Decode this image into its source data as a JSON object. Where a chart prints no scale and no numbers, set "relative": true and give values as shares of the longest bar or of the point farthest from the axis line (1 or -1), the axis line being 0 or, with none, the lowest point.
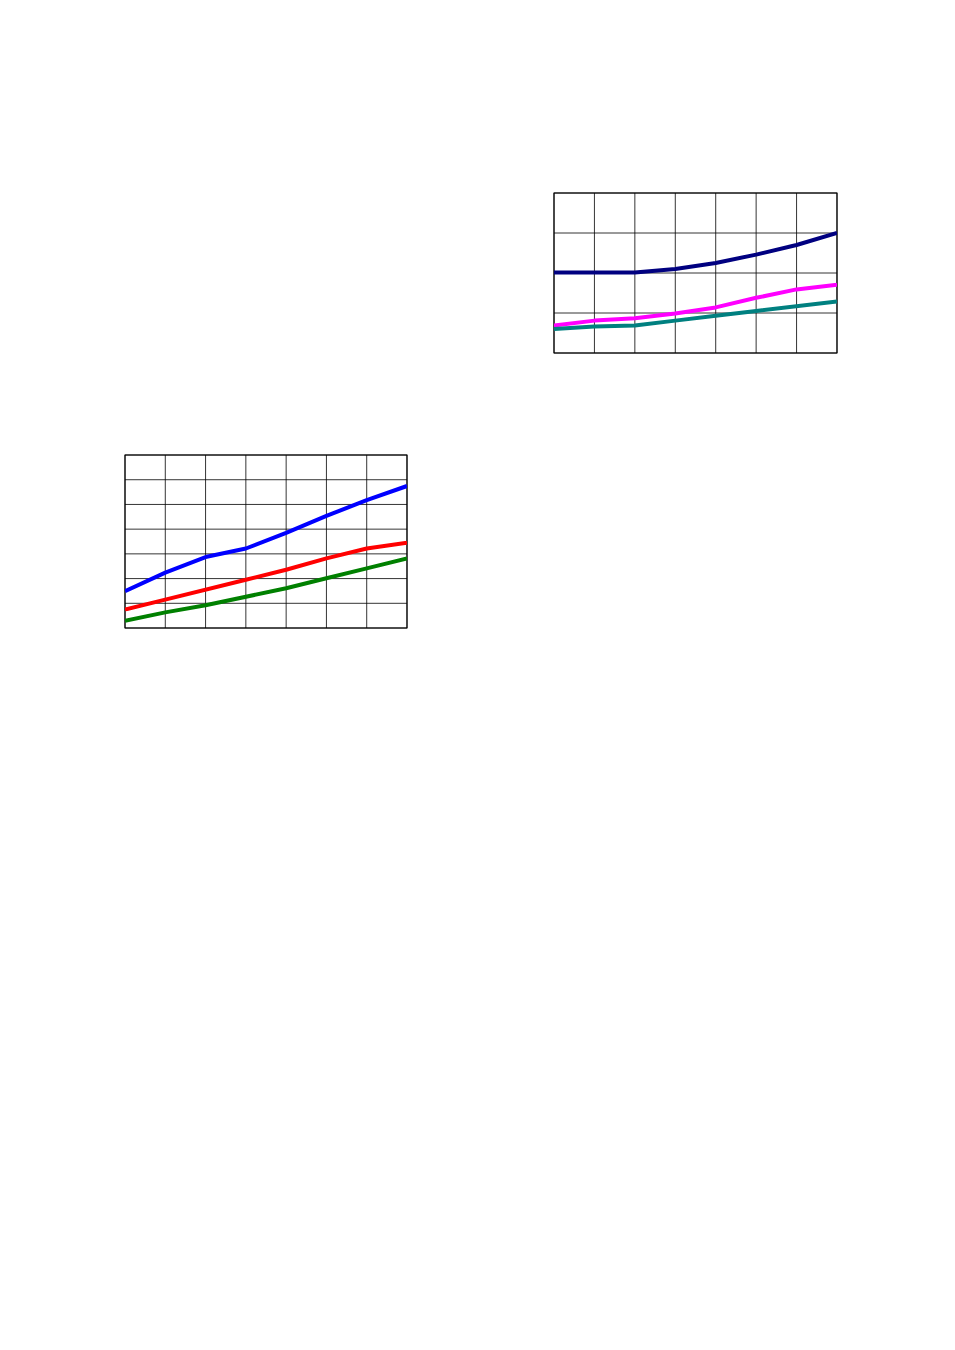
{
  "chart_data": [
    {
      "type": "line",
      "relative": true,
      "categories": [
        null,
        null,
        null,
        null,
        null,
        null,
        null,
        null
      ],
      "grid": true,
      "series": [
        {
          "color": "#000080",
          "values": [
            0.67,
            0.67,
            0.67,
            0.7,
            0.75,
            0.82,
            0.9,
            1
          ]
        },
        {
          "color": "#ff00ff",
          "values": [
            0.23,
            0.27,
            0.29,
            0.33,
            0.38,
            0.46,
            0.53,
            0.57
          ]
        },
        {
          "color": "#008080",
          "values": [
            0.2,
            0.22,
            0.23,
            0.27,
            0.31,
            0.35,
            0.39,
            0.43
          ]
        }
      ]
    },
    {
      "type": "line",
      "relative": true,
      "categories": [
        null,
        null,
        null,
        null,
        null,
        null,
        null,
        null
      ],
      "grid": true,
      "series": [
        {
          "color": "#0000ff",
          "values": [
            0.26,
            0.39,
            0.5,
            0.56,
            0.67,
            0.79,
            0.9,
            1
          ]
        },
        {
          "color": "#ff0000",
          "values": [
            0.13,
            0.2,
            0.27,
            0.34,
            0.41,
            0.49,
            0.56,
            0.6
          ]
        },
        {
          "color": "#008000",
          "values": [
            0.05,
            0.11,
            0.16,
            0.22,
            0.28,
            0.35,
            0.42,
            0.49
          ]
        }
      ]
    }
  ]
}
